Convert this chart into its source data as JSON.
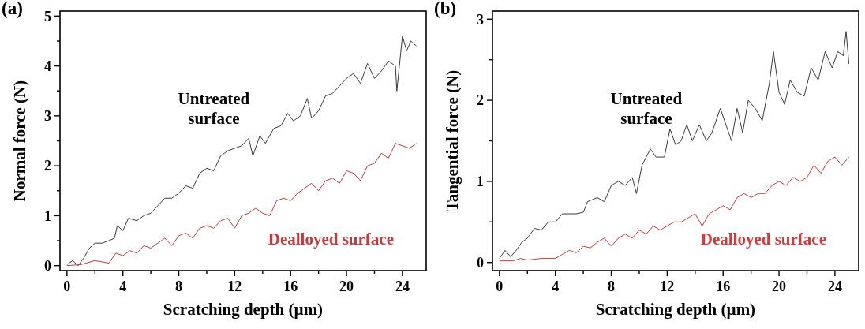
{
  "chart_data": [
    {
      "type": "line",
      "title": "(a)",
      "xlabel": "Scratching depth (µm)",
      "ylabel": "Normal force (N)",
      "xlim": [
        -0.5,
        25.7
      ],
      "ylim": [
        -0.1,
        5.1
      ],
      "xticks": [
        0,
        {
          "value": 2,
          "label": null
        },
        4,
        {
          "value": 6,
          "label": null
        },
        8,
        {
          "value": 10,
          "label": null
        },
        12,
        {
          "value": 14,
          "label": null
        },
        16,
        {
          "value": 18,
          "label": null
        },
        20,
        {
          "value": 22,
          "label": null
        },
        24
      ],
      "yticks": [
        0,
        {
          "value": 0.5,
          "label": null
        },
        1,
        {
          "value": 1.5,
          "label": null
        },
        2,
        {
          "value": 2.5,
          "label": null
        },
        3,
        {
          "value": 3.5,
          "label": null
        },
        4,
        {
          "value": 4.5,
          "label": null
        },
        5
      ],
      "grid": false,
      "marker": "none",
      "line_style": "solid",
      "series": [
        {
          "name": "Untreated surface",
          "color": "#3a3a3a",
          "x": [
            0,
            0.4,
            0.8,
            1.2,
            1.6,
            2,
            2.5,
            3,
            3.4,
            3.6,
            4,
            4.4,
            5,
            5.5,
            6,
            6.5,
            7,
            7.5,
            8,
            8.5,
            9,
            9.5,
            10,
            10.5,
            11,
            11.5,
            12,
            12.5,
            13,
            13.3,
            13.8,
            14.2,
            14.8,
            15.3,
            15.8,
            16.2,
            16.7,
            17.2,
            17.5,
            18,
            18.5,
            19,
            19.5,
            20,
            20.5,
            21,
            21.5,
            22,
            22.5,
            23,
            23.5,
            23.6,
            24,
            24.3,
            24.6,
            25
          ],
          "values": [
            0.02,
            0.1,
            0,
            0.15,
            0.35,
            0.45,
            0.45,
            0.5,
            0.55,
            0.8,
            0.7,
            0.95,
            0.9,
            1,
            1.05,
            1.2,
            1.35,
            1.35,
            1.45,
            1.6,
            1.55,
            1.85,
            1.95,
            1.9,
            2.2,
            2.3,
            2.35,
            2.4,
            2.55,
            2.2,
            2.6,
            2.45,
            2.75,
            2.8,
            3.05,
            2.9,
            3,
            3.35,
            2.95,
            3.1,
            3.4,
            3.45,
            3.6,
            3.75,
            3.85,
            3.65,
            4.05,
            3.75,
            3.9,
            4.1,
            4,
            3.5,
            4.6,
            4.3,
            4.5,
            4.4
          ]
        },
        {
          "name": "Dealloyed surface",
          "color": "#c23a3a",
          "x": [
            0,
            1,
            2,
            3,
            3.5,
            4,
            4.5,
            5,
            5.5,
            6,
            6.5,
            7,
            7.5,
            8,
            8.5,
            9,
            9.5,
            10,
            10.5,
            11,
            11.5,
            12,
            12.5,
            13,
            13.5,
            14,
            14.5,
            15,
            15.5,
            16,
            16.5,
            17,
            17.5,
            18,
            18.5,
            19,
            19.5,
            20,
            20.5,
            21,
            21.5,
            22,
            22.5,
            23,
            23.5,
            24,
            24.5,
            25
          ],
          "values": [
            0,
            0.02,
            0.1,
            0.05,
            0.25,
            0.2,
            0.3,
            0.25,
            0.4,
            0.35,
            0.45,
            0.55,
            0.4,
            0.6,
            0.65,
            0.55,
            0.75,
            0.8,
            0.75,
            0.9,
            0.95,
            0.75,
            1,
            1.05,
            1.15,
            1.05,
            1,
            1.3,
            1.35,
            1.3,
            1.45,
            1.55,
            1.65,
            1.5,
            1.7,
            1.75,
            1.65,
            1.9,
            1.85,
            1.7,
            2,
            2.05,
            2.25,
            2.15,
            2.45,
            2.4,
            2.35,
            2.45
          ]
        }
      ]
    },
    {
      "type": "line",
      "title": "(b)",
      "xlabel": "Scratching depth (µm)",
      "ylabel": "Tangential force (N)",
      "xlim": [
        -0.5,
        25.7
      ],
      "ylim": [
        -0.1,
        3.1
      ],
      "xticks": [
        0,
        {
          "value": 2,
          "label": null
        },
        4,
        {
          "value": 6,
          "label": null
        },
        8,
        {
          "value": 10,
          "label": null
        },
        12,
        {
          "value": 14,
          "label": null
        },
        16,
        {
          "value": 18,
          "label": null
        },
        20,
        {
          "value": 22,
          "label": null
        },
        24
      ],
      "yticks": [
        0,
        {
          "value": 0.5,
          "label": null
        },
        1,
        {
          "value": 1.5,
          "label": null
        },
        2,
        {
          "value": 2.5,
          "label": null
        },
        3
      ],
      "grid": false,
      "marker": "none",
      "line_style": "solid",
      "series": [
        {
          "name": "Untreated surface",
          "color": "#3a3a3a",
          "x": [
            0,
            0.4,
            0.8,
            1.2,
            1.6,
            2,
            2.5,
            3,
            3.5,
            4,
            4.5,
            5,
            5.5,
            6,
            6.3,
            7,
            7.5,
            8,
            8.5,
            9,
            9.5,
            9.8,
            10.2,
            10.8,
            11.2,
            11.8,
            12.2,
            12.6,
            13,
            13.4,
            13.8,
            14.3,
            14.8,
            15.2,
            15.8,
            16.2,
            16.6,
            17,
            17.4,
            17.8,
            18.3,
            18.8,
            19.3,
            19.6,
            20,
            20.4,
            20.8,
            21.3,
            21.8,
            22.3,
            22.8,
            23.3,
            23.8,
            24.2,
            24.6,
            24.8,
            25
          ],
          "values": [
            0.05,
            0.15,
            0.07,
            0.15,
            0.25,
            0.3,
            0.42,
            0.4,
            0.5,
            0.5,
            0.6,
            0.6,
            0.6,
            0.62,
            0.75,
            0.8,
            0.75,
            0.95,
            1,
            0.95,
            1.05,
            0.85,
            1.2,
            1.4,
            1.3,
            1.3,
            1.65,
            1.45,
            1.5,
            1.7,
            1.5,
            1.7,
            1.5,
            1.6,
            1.9,
            1.7,
            1.5,
            1.9,
            1.6,
            2,
            1.9,
            1.75,
            2.2,
            2.6,
            2.1,
            1.95,
            2.25,
            2.1,
            2.05,
            2.4,
            2.25,
            2.6,
            2.4,
            2.6,
            2.55,
            2.85,
            2.45
          ]
        },
        {
          "name": "Dealloyed surface",
          "color": "#d63a3a",
          "x": [
            0,
            1,
            1.5,
            2,
            3,
            4,
            4.5,
            5,
            5.5,
            6,
            6.5,
            7,
            7.5,
            8,
            8.5,
            9,
            9.5,
            10,
            10.5,
            11,
            11.5,
            12,
            12.5,
            13,
            13.5,
            14,
            14.5,
            15,
            15.5,
            16,
            16.5,
            17,
            17.5,
            18,
            18.5,
            19,
            19.5,
            20,
            20.5,
            21,
            21.5,
            22,
            22.5,
            23,
            23.5,
            24,
            24.5,
            25
          ],
          "values": [
            0.02,
            0.02,
            0.05,
            0.03,
            0.05,
            0.05,
            0.1,
            0.15,
            0.12,
            0.2,
            0.18,
            0.25,
            0.3,
            0.2,
            0.3,
            0.35,
            0.3,
            0.4,
            0.35,
            0.45,
            0.4,
            0.45,
            0.5,
            0.5,
            0.55,
            0.6,
            0.45,
            0.6,
            0.65,
            0.7,
            0.65,
            0.8,
            0.85,
            0.8,
            0.85,
            0.85,
            0.95,
            1,
            0.95,
            1.05,
            1,
            1.05,
            1.2,
            1.1,
            1.25,
            1.3,
            1.2,
            1.3
          ]
        }
      ]
    }
  ]
}
